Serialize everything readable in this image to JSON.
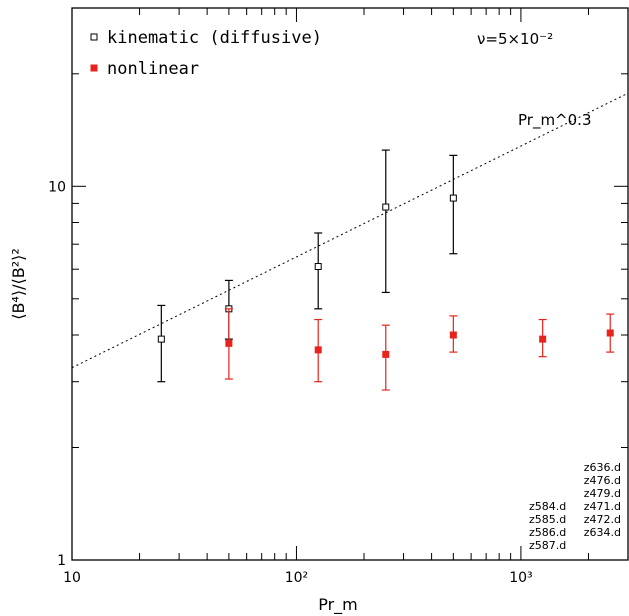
{
  "chart_data": {
    "type": "scatter",
    "xscale": "log",
    "yscale": "log",
    "xlim": [
      10,
      3000
    ],
    "ylim": [
      1,
      30
    ],
    "xlabel": "Pr_m",
    "ylabel": "⟨B⁴⟩/⟨B²⟩²",
    "x_tick_labels": [
      "10",
      "10²",
      "10³"
    ],
    "y_tick_labels": [
      "1",
      "10"
    ],
    "legend_position": "top-left",
    "annotation": "ν=5×10⁻²",
    "series": [
      {
        "name": "kinematic (diffusive)",
        "marker": "open-square",
        "color": "#000000",
        "points": [
          {
            "x": 25,
            "y": 3.9,
            "ylo": 3.0,
            "yhi": 4.8
          },
          {
            "x": 50,
            "y": 4.7,
            "ylo": 3.9,
            "yhi": 5.6
          },
          {
            "x": 125,
            "y": 6.1,
            "ylo": 4.7,
            "yhi": 7.5
          },
          {
            "x": 250,
            "y": 8.8,
            "ylo": 5.2,
            "yhi": 12.5
          },
          {
            "x": 500,
            "y": 9.3,
            "ylo": 6.6,
            "yhi": 12.1
          }
        ]
      },
      {
        "name": "nonlinear",
        "marker": "filled-square",
        "color": "#e8221c",
        "points": [
          {
            "x": 50,
            "y": 3.8,
            "ylo": 3.05,
            "yhi": 4.7
          },
          {
            "x": 125,
            "y": 3.65,
            "ylo": 3.0,
            "yhi": 4.4
          },
          {
            "x": 250,
            "y": 3.55,
            "ylo": 2.85,
            "yhi": 4.25
          },
          {
            "x": 500,
            "y": 4.0,
            "ylo": 3.6,
            "yhi": 4.5
          },
          {
            "x": 1250,
            "y": 3.9,
            "ylo": 3.5,
            "yhi": 4.4
          },
          {
            "x": 2500,
            "y": 4.05,
            "ylo": 3.6,
            "yhi": 4.55
          }
        ]
      }
    ],
    "fit_line": {
      "label": "Pr_m^0.3",
      "exponent": 0.3,
      "x": [
        10,
        3000
      ],
      "y": [
        3.27,
        17.75
      ]
    }
  },
  "file_labels_right": [
    "z636.d",
    "z476.d",
    "z479.d",
    "z471.d",
    "z472.d",
    "z634.d"
  ],
  "file_labels_left": [
    "z584.d",
    "z585.d",
    "z586.d",
    "z587.d"
  ]
}
